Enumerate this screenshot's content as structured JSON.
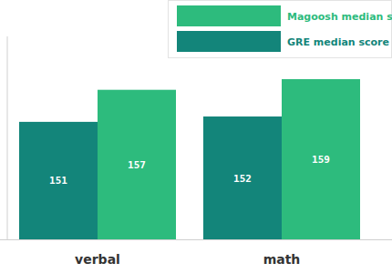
{
  "chart_data": {
    "type": "bar",
    "categories": [
      "verbal",
      "math"
    ],
    "series": [
      {
        "name": "GRE median score",
        "color": "#13857a",
        "values": [
          151,
          152
        ]
      },
      {
        "name": "Magoosh median score",
        "color": "#2dbb7d",
        "values": [
          157,
          159
        ]
      }
    ],
    "ylim": [
      129,
      167
    ],
    "tick_labels": "x",
    "data_labels": true,
    "legend": "top-right",
    "grid": false
  }
}
